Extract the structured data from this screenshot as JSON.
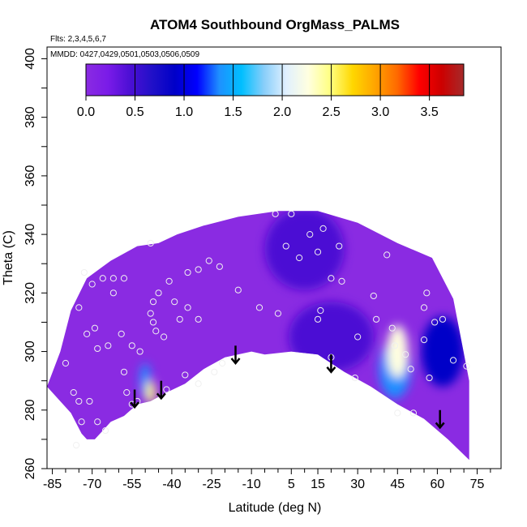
{
  "chart_data": {
    "type": "heatmap",
    "title": "ATOM4 Southbound OrgMass_PALMS",
    "flights_note": "Flts: 2,3,4,5,6,7",
    "dates_note": "MMDD: 0427,0429,0501,0503,0506,0509",
    "xlabel": "Latitude (deg N)",
    "ylabel": "Theta (C)",
    "xlim": [
      -87,
      84
    ],
    "ylim": [
      260,
      404
    ],
    "x_ticks": [
      -85,
      -70,
      -55,
      -40,
      -25,
      -10,
      5,
      15,
      30,
      45,
      60,
      75
    ],
    "x_tick_labels": [
      "-85",
      "-70",
      "-55",
      "-40",
      "-25",
      "-10",
      "5",
      "15",
      "30",
      "45",
      "60",
      "75"
    ],
    "y_ticks": [
      260,
      280,
      300,
      320,
      340,
      360,
      380,
      400
    ],
    "y_tick_labels": [
      "260",
      "280",
      "300",
      "320",
      "340",
      "360",
      "380",
      "400"
    ],
    "colorbar": {
      "min": 0.0,
      "max": 3.85,
      "ticks": [
        0.0,
        0.5,
        1.0,
        1.5,
        2.0,
        2.5,
        3.0,
        3.5
      ],
      "tick_labels": [
        "0.0",
        "0.5",
        "1.0",
        "1.5",
        "2.0",
        "2.5",
        "3.0",
        "3.5"
      ],
      "colors": [
        "#8a2be2",
        "#7a1be8",
        "#4b0fd4",
        "#2010c8",
        "#0000c8",
        "#0000ff",
        "#1e90ff",
        "#00bfff",
        "#87cefa",
        "#e0f0ff",
        "#ffffe0",
        "#ffff80",
        "#ffd700",
        "#ffa500",
        "#ff6a00",
        "#ff0000",
        "#cd0000",
        "#a52a2a"
      ]
    },
    "domain_upper": [
      [
        -87,
        288
      ],
      [
        -82,
        300
      ],
      [
        -78,
        314
      ],
      [
        -72,
        325
      ],
      [
        -63,
        331
      ],
      [
        -53,
        336
      ],
      [
        -45,
        337
      ],
      [
        -38,
        340
      ],
      [
        -28,
        343
      ],
      [
        -15,
        346
      ],
      [
        0,
        348
      ],
      [
        15,
        348
      ],
      [
        30,
        344
      ],
      [
        45,
        337
      ],
      [
        58,
        332
      ],
      [
        66,
        318
      ],
      [
        72,
        290
      ],
      [
        72,
        263
      ]
    ],
    "domain_lower": [
      [
        72,
        263
      ],
      [
        64,
        270
      ],
      [
        55,
        277
      ],
      [
        45,
        282
      ],
      [
        35,
        288
      ],
      [
        25,
        293
      ],
      [
        15,
        299
      ],
      [
        5,
        300
      ],
      [
        -5,
        299
      ],
      [
        -10,
        300
      ],
      [
        -20,
        298
      ],
      [
        -28,
        294
      ],
      [
        -35,
        289
      ],
      [
        -42,
        286
      ],
      [
        -48,
        283
      ],
      [
        -53,
        282
      ],
      [
        -58,
        278
      ],
      [
        -63,
        276
      ],
      [
        -66,
        273
      ],
      [
        -69,
        270
      ],
      [
        -72,
        270
      ],
      [
        -74,
        272
      ],
      [
        -78,
        279
      ],
      [
        -87,
        288
      ]
    ],
    "hotspots": [
      {
        "x": 45,
        "y": 300,
        "value": 2.3,
        "rx": 4,
        "ry": 9
      },
      {
        "x": 44,
        "y": 294,
        "value": 1.4,
        "rx": 6,
        "ry": 10
      },
      {
        "x": -48,
        "y": 286,
        "value": 2.6,
        "rx": 1.8,
        "ry": 4
      },
      {
        "x": -50,
        "y": 290,
        "value": 1.3,
        "rx": 2,
        "ry": 6
      },
      {
        "x": 62,
        "y": 300,
        "value": 0.9,
        "rx": 8,
        "ry": 12
      },
      {
        "x": 20,
        "y": 305,
        "value": 0.55,
        "rx": 16,
        "ry": 12
      },
      {
        "x": 10,
        "y": 335,
        "value": 0.4,
        "rx": 15,
        "ry": 14
      }
    ],
    "sample_points": [
      [
        -73,
        327
      ],
      [
        -70,
        323
      ],
      [
        -66,
        325
      ],
      [
        -62,
        325
      ],
      [
        -58,
        325
      ],
      [
        -62,
        320
      ],
      [
        -75,
        315
      ],
      [
        -72,
        306
      ],
      [
        -69,
        308
      ],
      [
        -68,
        301
      ],
      [
        -64,
        302
      ],
      [
        -59,
        306
      ],
      [
        -80,
        296
      ],
      [
        -58,
        293
      ],
      [
        -55,
        302
      ],
      [
        -52,
        300
      ],
      [
        -57,
        286
      ],
      [
        -55,
        282
      ],
      [
        -71,
        283
      ],
      [
        -77,
        286
      ],
      [
        -74,
        276
      ],
      [
        -75,
        283
      ],
      [
        -76,
        268
      ],
      [
        -68,
        276
      ],
      [
        -65,
        273
      ],
      [
        -48,
        337
      ],
      [
        -45,
        320
      ],
      [
        -47,
        317
      ],
      [
        -48,
        313
      ],
      [
        -47,
        310
      ],
      [
        -46,
        307
      ],
      [
        -43,
        305
      ],
      [
        -39,
        317
      ],
      [
        -37,
        311
      ],
      [
        -34,
        315
      ],
      [
        -34,
        327
      ],
      [
        -30,
        328
      ],
      [
        -26,
        331
      ],
      [
        -22,
        329
      ],
      [
        -30,
        311
      ],
      [
        -35,
        292
      ],
      [
        -30,
        289
      ],
      [
        -24,
        293
      ],
      [
        -21,
        296
      ],
      [
        -53,
        283
      ],
      [
        -42,
        287
      ],
      [
        -41,
        324
      ],
      [
        -15,
        321
      ],
      [
        -1,
        347
      ],
      [
        5,
        347
      ],
      [
        3,
        336
      ],
      [
        -7,
        315
      ],
      [
        0,
        313
      ],
      [
        8,
        332
      ],
      [
        12,
        340
      ],
      [
        17,
        342
      ],
      [
        15,
        334
      ],
      [
        16,
        314
      ],
      [
        15,
        311
      ],
      [
        20,
        325
      ],
      [
        23,
        336
      ],
      [
        24,
        324
      ],
      [
        20,
        298
      ],
      [
        30,
        305
      ],
      [
        29,
        291
      ],
      [
        36,
        319
      ],
      [
        37,
        311
      ],
      [
        41,
        333
      ],
      [
        43,
        308
      ],
      [
        44,
        302
      ],
      [
        45,
        279
      ],
      [
        48,
        299
      ],
      [
        50,
        294
      ],
      [
        51,
        279
      ],
      [
        55,
        315
      ],
      [
        56,
        320
      ],
      [
        55,
        304
      ],
      [
        57,
        291
      ],
      [
        59,
        310
      ],
      [
        62,
        311
      ],
      [
        66,
        297
      ],
      [
        71,
        295
      ]
    ],
    "arrows": [
      {
        "x": -54,
        "y_top": 287,
        "y_bottom": 281
      },
      {
        "x": -44,
        "y_top": 290,
        "y_bottom": 284
      },
      {
        "x": -16,
        "y_top": 302,
        "y_bottom": 296
      },
      {
        "x": 20,
        "y_top": 299,
        "y_bottom": 293
      },
      {
        "x": 61,
        "y_top": 280,
        "y_bottom": 274
      }
    ]
  }
}
